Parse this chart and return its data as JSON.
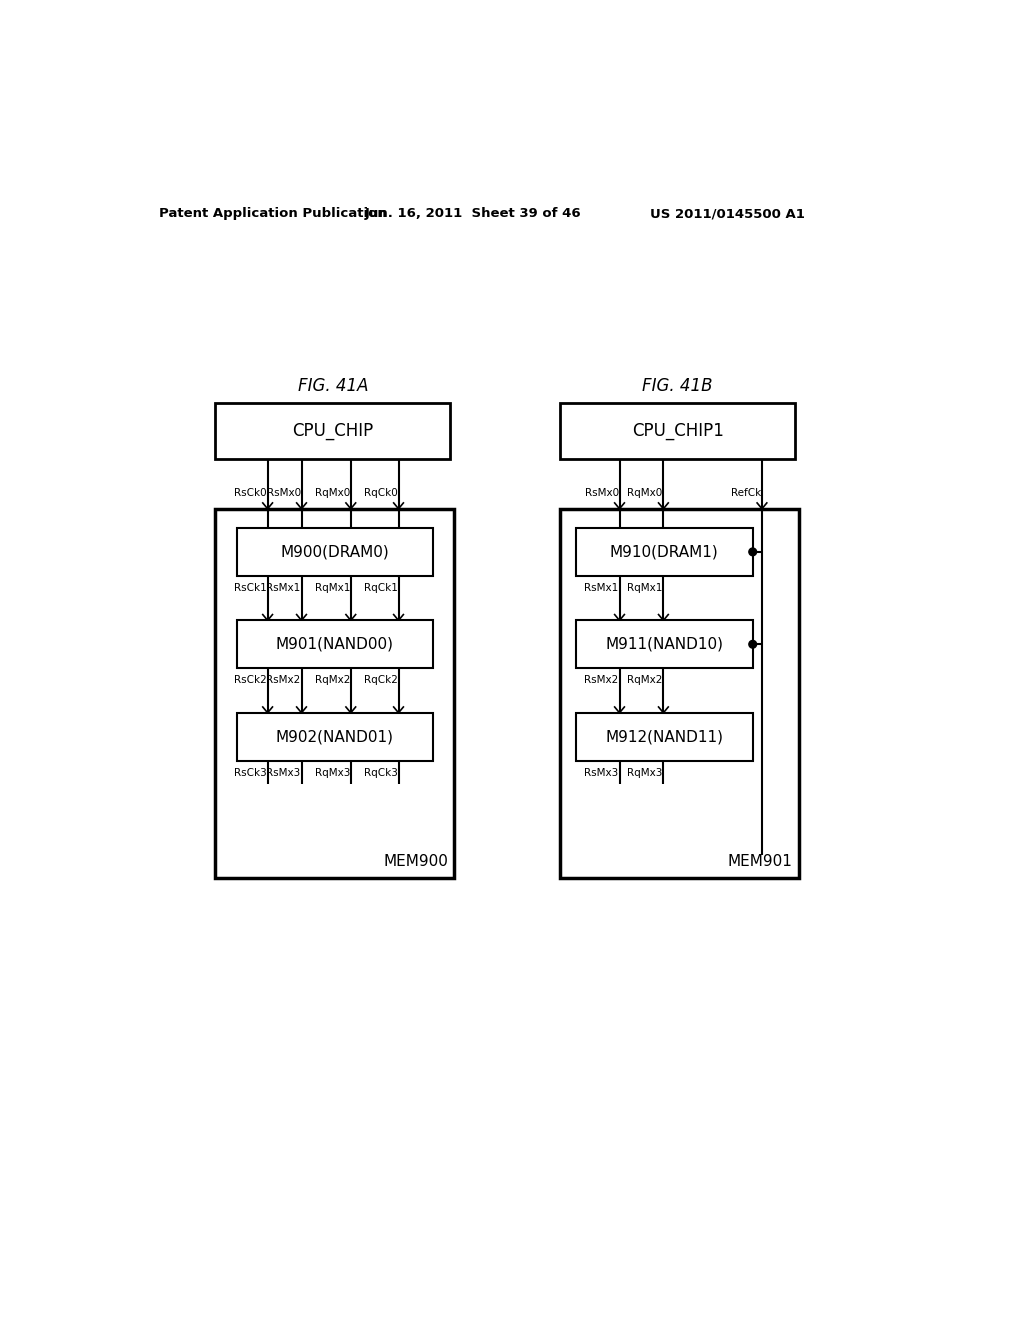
{
  "background_color": "#ffffff",
  "header_left": "Patent Application Publication",
  "header_center": "Jun. 16, 2011  Sheet 39 of 46",
  "header_right": "US 2011/0145500 A1",
  "fig41a_title": "FIG. 41A",
  "fig41b_title": "FIG. 41B",
  "cpu_chip_label": "CPU_CHIP",
  "cpu_chip1_label": "CPU_CHIP1",
  "mem900_label": "MEM900",
  "mem901_label": "MEM901",
  "dram0_label": "M900(DRAM0)",
  "nand00_label": "M901(NAND00)",
  "nand01_label": "M902(NAND01)",
  "dram1_label": "M910(DRAM1)",
  "nand10_label": "M911(NAND10)",
  "nand11_label": "M912(NAND11)",
  "figA_signals_top": [
    "RsCk0",
    "RsMx0",
    "RqMx0",
    "RqCk0"
  ],
  "figA_signals_1": [
    "RsCk1",
    "RsMx1",
    "RqMx1",
    "RqCk1"
  ],
  "figA_signals_2": [
    "RsCk2",
    "RsMx2",
    "RqMx2",
    "RqCk2"
  ],
  "figA_signals_3": [
    "RsCk3",
    "RsMx3",
    "RqMx3",
    "RqCk3"
  ],
  "figB_signals_top": [
    "RsMx0",
    "RqMx0",
    "RefCk"
  ],
  "figB_signals_1": [
    "RsMx1",
    "RqMx1"
  ],
  "figB_signals_2": [
    "RsMx2",
    "RqMx2"
  ],
  "figB_signals_3": [
    "RsMx3",
    "RqMx3"
  ]
}
